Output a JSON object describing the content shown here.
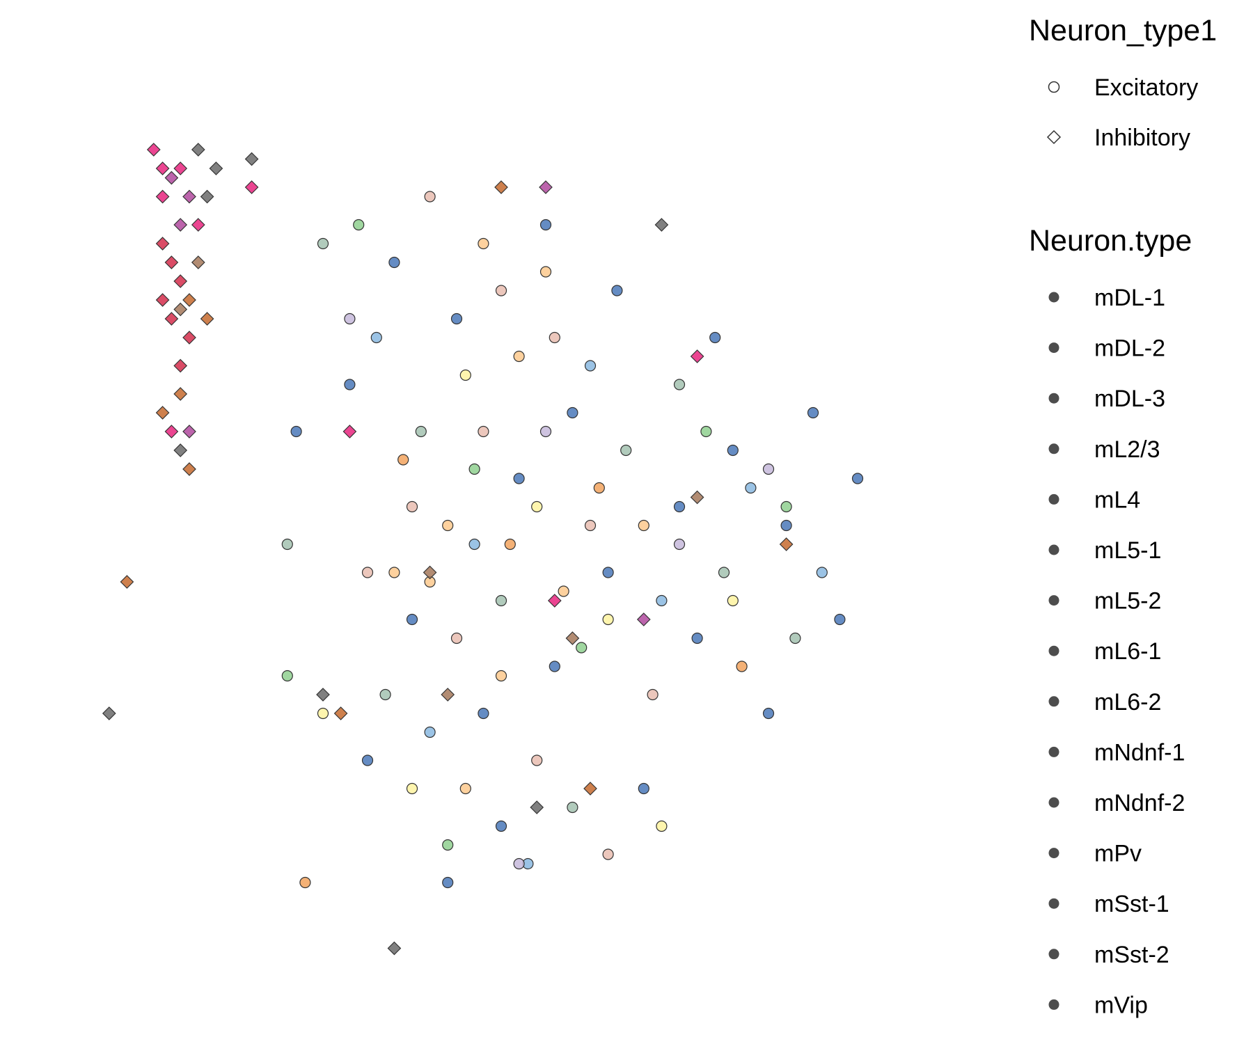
{
  "chart_data": {
    "type": "scatter",
    "title": "",
    "xlabel": "",
    "ylabel": "",
    "grid": false,
    "legend_position": "right",
    "x_range": [
      0,
      100
    ],
    "y_range": [
      0,
      100
    ],
    "shape_legend": {
      "title": "Neuron_type1",
      "entries": [
        {
          "label": "Excitatory",
          "shape": "circle"
        },
        {
          "label": "Inhibitory",
          "shape": "diamond"
        }
      ]
    },
    "color_legend": {
      "title": "Neuron.type",
      "entries": [
        "mDL-1",
        "mDL-2",
        "mDL-3",
        "mL2/3",
        "mL4",
        "mL5-1",
        "mL5-2",
        "mL6-1",
        "mL6-2",
        "mNdnf-1",
        "mNdnf-2",
        "mPv",
        "mSst-1",
        "mSst-2",
        "mVip"
      ]
    },
    "series": [
      {
        "name": "mDL-1",
        "shape": "circle",
        "color": "#4a78b8",
        "points": [
          [
            38,
            22
          ],
          [
            45,
            28
          ],
          [
            52,
            45
          ],
          [
            58,
            38
          ],
          [
            62,
            55
          ],
          [
            70,
            48
          ],
          [
            76,
            42
          ],
          [
            82,
            50
          ],
          [
            88,
            60
          ],
          [
            33,
            35
          ],
          [
            40,
            60
          ],
          [
            48,
            70
          ],
          [
            55,
            18
          ],
          [
            63,
            25
          ],
          [
            72,
            62
          ],
          [
            80,
            70
          ],
          [
            27,
            40
          ],
          [
            35,
            75
          ],
          [
            50,
            82
          ],
          [
            66,
            78
          ],
          [
            74,
            30
          ],
          [
            85,
            38
          ],
          [
            44,
            88
          ],
          [
            56,
            65
          ],
          [
            90,
            45
          ]
        ]
      },
      {
        "name": "mDL-2",
        "shape": "circle",
        "color": "#8ab8e0",
        "points": [
          [
            36,
            30
          ],
          [
            47,
            52
          ],
          [
            60,
            33
          ],
          [
            68,
            58
          ],
          [
            78,
            46
          ],
          [
            42,
            72
          ],
          [
            53,
            86
          ],
          [
            86,
            55
          ]
        ]
      },
      {
        "name": "mDL-3",
        "shape": "circle",
        "color": "#a3c2b0",
        "points": [
          [
            30,
            20
          ],
          [
            41,
            40
          ],
          [
            50,
            58
          ],
          [
            64,
            42
          ],
          [
            75,
            55
          ],
          [
            83,
            62
          ],
          [
            37,
            68
          ],
          [
            58,
            80
          ],
          [
            70,
            35
          ],
          [
            26,
            52
          ]
        ]
      },
      {
        "name": "mL2/3",
        "shape": "circle",
        "color": "#e9bdb0",
        "points": [
          [
            42,
            15
          ],
          [
            50,
            25
          ],
          [
            56,
            30
          ],
          [
            48,
            40
          ],
          [
            40,
            48
          ],
          [
            60,
            50
          ],
          [
            67,
            68
          ],
          [
            54,
            75
          ],
          [
            45,
            62
          ],
          [
            35,
            55
          ],
          [
            62,
            85
          ]
        ]
      },
      {
        "name": "mL4",
        "shape": "circle",
        "color": "#fdc98d",
        "points": [
          [
            48,
            20
          ],
          [
            55,
            23
          ],
          [
            52,
            32
          ],
          [
            44,
            50
          ],
          [
            38,
            55
          ],
          [
            57,
            57
          ],
          [
            42,
            56
          ],
          [
            66,
            50
          ],
          [
            50,
            66
          ],
          [
            46,
            78
          ]
        ]
      },
      {
        "name": "mL5-1",
        "shape": "circle",
        "color": "#fef3a0",
        "points": [
          [
            46,
            34
          ],
          [
            54,
            48
          ],
          [
            62,
            60
          ],
          [
            40,
            78
          ],
          [
            68,
            82
          ],
          [
            30,
            70
          ],
          [
            76,
            58
          ]
        ]
      },
      {
        "name": "mL5-2",
        "shape": "circle",
        "color": "#8fd08f",
        "points": [
          [
            34,
            18
          ],
          [
            47,
            44
          ],
          [
            59,
            63
          ],
          [
            73,
            40
          ],
          [
            82,
            48
          ],
          [
            26,
            66
          ],
          [
            44,
            84
          ]
        ]
      },
      {
        "name": "mL6-1",
        "shape": "circle",
        "color": "#c6b8db",
        "points": [
          [
            33,
            28
          ],
          [
            55,
            40
          ],
          [
            70,
            52
          ],
          [
            80,
            44
          ],
          [
            52,
            86
          ]
        ]
      },
      {
        "name": "mL6-2",
        "shape": "circle",
        "color": "#f2a35e",
        "points": [
          [
            39,
            43
          ],
          [
            51,
            52
          ],
          [
            61,
            46
          ],
          [
            77,
            65
          ],
          [
            28,
            88
          ]
        ]
      },
      {
        "name": "mNdnf-1",
        "shape": "diamond",
        "color": "#d42d4b",
        "points": [
          [
            12,
            20
          ],
          [
            13,
            22
          ],
          [
            14,
            24
          ],
          [
            12,
            26
          ],
          [
            13,
            28
          ],
          [
            15,
            30
          ],
          [
            14,
            33
          ]
        ]
      },
      {
        "name": "mNdnf-2",
        "shape": "diamond",
        "color": "#e8257e",
        "points": [
          [
            11,
            10
          ],
          [
            12,
            12
          ],
          [
            14,
            12
          ],
          [
            12,
            15
          ],
          [
            16,
            18
          ],
          [
            13,
            40
          ],
          [
            22,
            14
          ],
          [
            33,
            40
          ],
          [
            56,
            58
          ],
          [
            72,
            32
          ]
        ]
      },
      {
        "name": "mPv",
        "shape": "diamond",
        "color": "#c66a2e",
        "points": [
          [
            15,
            26
          ],
          [
            17,
            28
          ],
          [
            14,
            36
          ],
          [
            12,
            38
          ],
          [
            15,
            44
          ],
          [
            8,
            56
          ],
          [
            32,
            70
          ],
          [
            60,
            78
          ],
          [
            82,
            52
          ],
          [
            50,
            14
          ]
        ]
      },
      {
        "name": "mSst-1",
        "shape": "diamond",
        "color": "#b0499e",
        "points": [
          [
            13,
            13
          ],
          [
            15,
            15
          ],
          [
            14,
            18
          ],
          [
            15,
            40
          ],
          [
            55,
            14
          ],
          [
            66,
            60
          ]
        ]
      },
      {
        "name": "mSst-2",
        "shape": "diamond",
        "color": "#6a6a6a",
        "points": [
          [
            16,
            10
          ],
          [
            18,
            12
          ],
          [
            17,
            15
          ],
          [
            22,
            11
          ],
          [
            14,
            42
          ],
          [
            6,
            70
          ],
          [
            30,
            68
          ],
          [
            54,
            80
          ],
          [
            38,
            95
          ],
          [
            68,
            18
          ]
        ]
      },
      {
        "name": "mVip",
        "shape": "diamond",
        "color": "#a4785a",
        "points": [
          [
            16,
            22
          ],
          [
            14,
            27
          ],
          [
            42,
            55
          ],
          [
            58,
            62
          ],
          [
            72,
            47
          ],
          [
            44,
            68
          ]
        ]
      }
    ]
  }
}
